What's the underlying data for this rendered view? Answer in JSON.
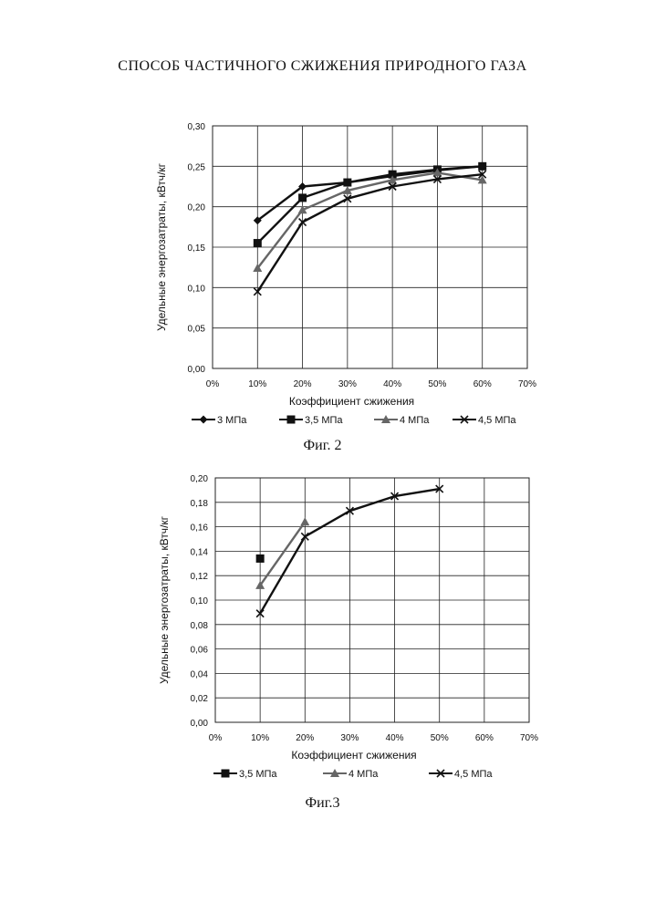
{
  "page": {
    "title": "СПОСОБ ЧАСТИЧНОГО СЖИЖЕНИЯ ПРИРОДНОГО ГАЗА"
  },
  "figures": [
    {
      "caption": "Фиг. 2"
    },
    {
      "caption": "Фиг.3"
    }
  ],
  "chart_data": [
    {
      "type": "line",
      "title": "",
      "xlabel": "Коэффициент сжижения",
      "ylabel": "Удельные энергозатраты, кВтч/кг",
      "xlim": [
        0,
        70
      ],
      "ylim": [
        0,
        0.3
      ],
      "x_ticks": [
        "0%",
        "10%",
        "20%",
        "30%",
        "40%",
        "50%",
        "60%",
        "70%"
      ],
      "y_ticks": [
        "0,00",
        "0,05",
        "0,10",
        "0,15",
        "0,20",
        "0,25",
        "0,30"
      ],
      "grid": true,
      "legend_position": "bottom",
      "series": [
        {
          "name": "3 МПа",
          "marker": "diamond",
          "color": "#111111",
          "points": [
            [
              10,
              0.183
            ],
            [
              20,
              0.225
            ],
            [
              30,
              0.23
            ],
            [
              40,
              0.238
            ],
            [
              50,
              0.245
            ],
            [
              60,
              0.25
            ]
          ]
        },
        {
          "name": "3,5 МПа",
          "marker": "square",
          "color": "#111111",
          "points": [
            [
              10,
              0.155
            ],
            [
              20,
              0.211
            ],
            [
              30,
              0.23
            ],
            [
              40,
              0.24
            ],
            [
              50,
              0.246
            ],
            [
              60,
              0.25
            ]
          ]
        },
        {
          "name": "4 МПа",
          "marker": "triangle",
          "color": "#666666",
          "points": [
            [
              10,
              0.124
            ],
            [
              20,
              0.196
            ],
            [
              30,
              0.22
            ],
            [
              40,
              0.233
            ],
            [
              50,
              0.242
            ],
            [
              60,
              0.233
            ]
          ]
        },
        {
          "name": "4,5 МПа",
          "marker": "x",
          "color": "#111111",
          "points": [
            [
              10,
              0.095
            ],
            [
              20,
              0.181
            ],
            [
              30,
              0.21
            ],
            [
              40,
              0.225
            ],
            [
              50,
              0.234
            ],
            [
              60,
              0.24
            ]
          ]
        }
      ]
    },
    {
      "type": "line",
      "title": "",
      "xlabel": "Коэффициент сжижения",
      "ylabel": "Удельные энергозатраты, кВтч/кг",
      "xlim": [
        0,
        70
      ],
      "ylim": [
        0,
        0.2
      ],
      "x_ticks": [
        "0%",
        "10%",
        "20%",
        "30%",
        "40%",
        "50%",
        "60%",
        "70%"
      ],
      "y_ticks": [
        "0,00",
        "0,02",
        "0,04",
        "0,06",
        "0,08",
        "0,10",
        "0,12",
        "0,14",
        "0,16",
        "0,18",
        "0,20"
      ],
      "grid": true,
      "legend_position": "bottom",
      "series": [
        {
          "name": "3,5 МПа",
          "marker": "square",
          "color": "#111111",
          "points": [
            [
              10,
              0.134
            ]
          ]
        },
        {
          "name": "4 МПа",
          "marker": "triangle",
          "color": "#666666",
          "points": [
            [
              10,
              0.112
            ],
            [
              20,
              0.164
            ]
          ]
        },
        {
          "name": "4,5 МПа",
          "marker": "x",
          "color": "#111111",
          "points": [
            [
              10,
              0.089
            ],
            [
              20,
              0.152
            ],
            [
              30,
              0.173
            ],
            [
              40,
              0.185
            ],
            [
              50,
              0.191
            ]
          ]
        }
      ]
    }
  ]
}
